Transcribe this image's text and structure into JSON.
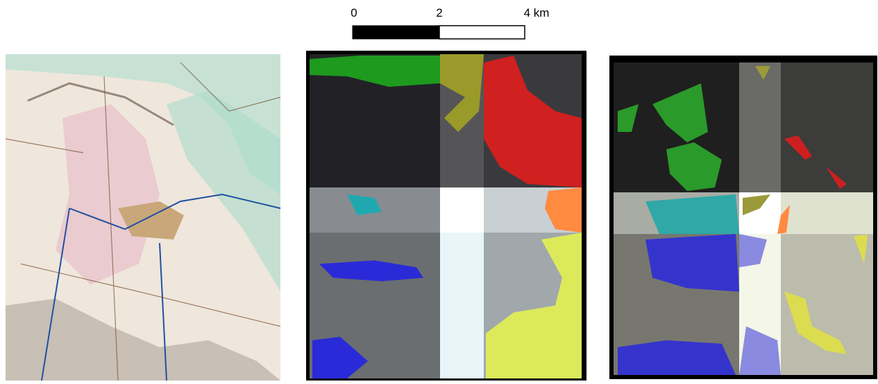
{
  "scale_bar": {
    "labels": [
      "0",
      "2",
      "4 km"
    ]
  }
}
